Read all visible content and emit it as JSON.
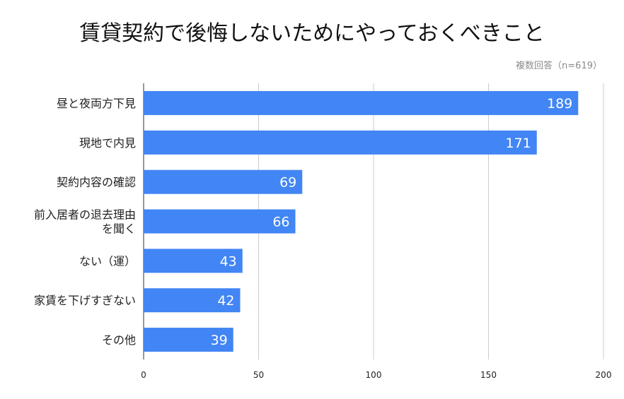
{
  "chart_data": {
    "type": "bar",
    "orientation": "horizontal",
    "title": "賃貸契約で後悔しないためにやっておくべきこと",
    "subtitle": "複数回答（n=619）",
    "categories": [
      [
        "昼と夜両方下見"
      ],
      [
        "現地で内見"
      ],
      [
        "契約内容の確認"
      ],
      [
        "前入居者の退去理由",
        "を聞く"
      ],
      [
        "ない（運）"
      ],
      [
        "家賃を下げすぎない"
      ],
      [
        "その他"
      ]
    ],
    "values": [
      189,
      171,
      69,
      66,
      43,
      42,
      39
    ],
    "data_labels": [
      "189",
      "171",
      "69",
      "66",
      "43",
      "42",
      "39"
    ],
    "xlim": [
      0,
      200
    ],
    "x_ticks": [
      "0",
      "50",
      "100",
      "150",
      "200"
    ],
    "grid": true,
    "bar_color": "#4285f4",
    "label_color": "#ffffff"
  }
}
